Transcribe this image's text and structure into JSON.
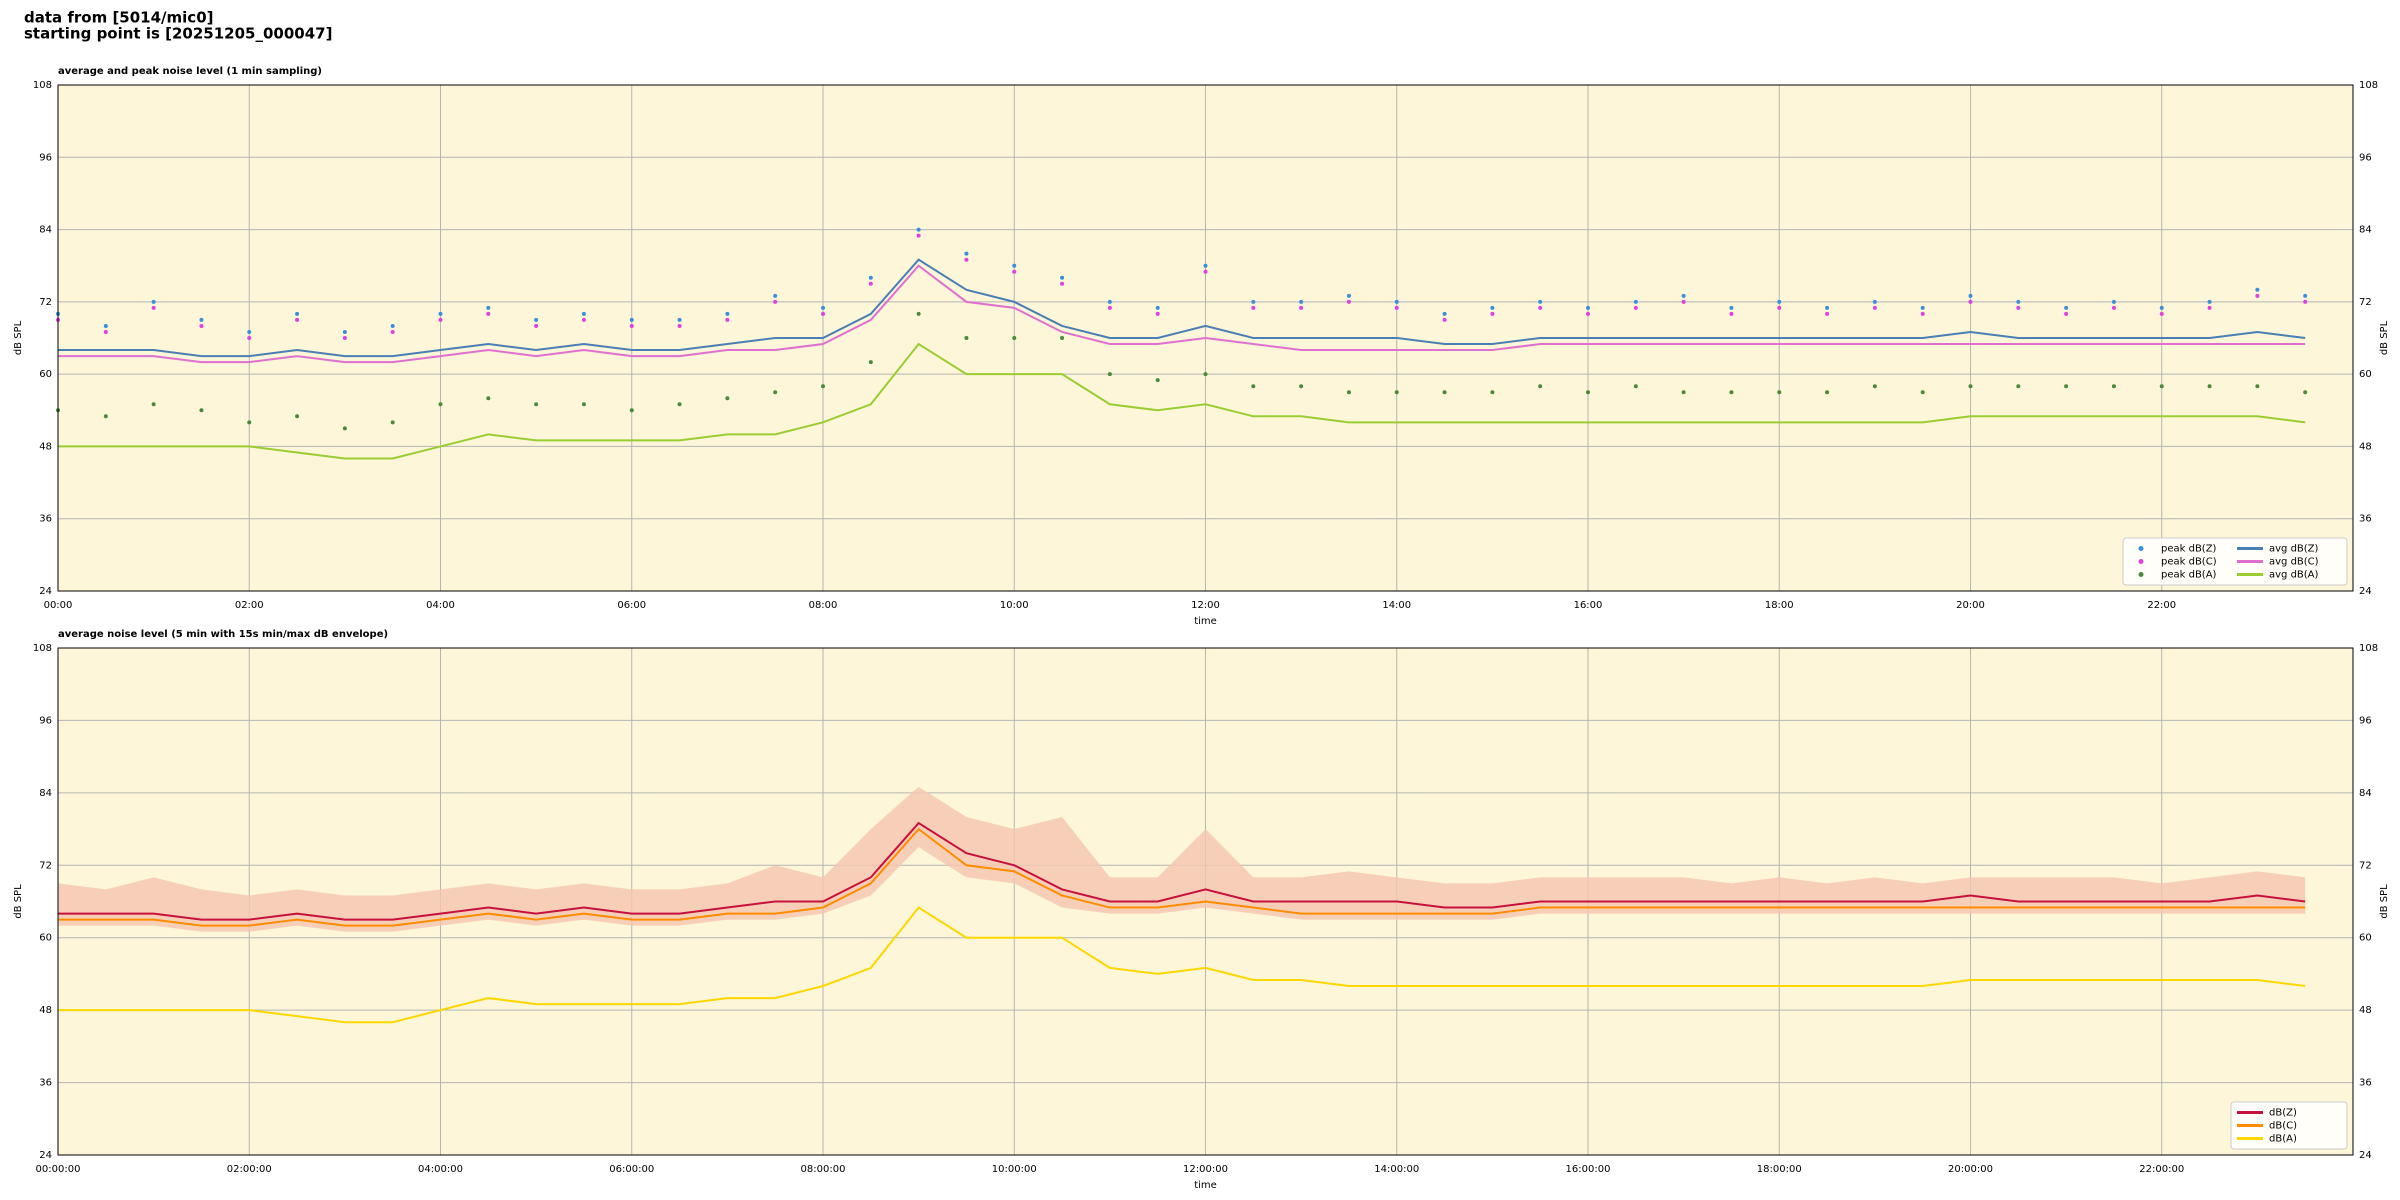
{
  "header": [
    "data from [5014/mic0]",
    "starting point is [20251205_000047]"
  ],
  "chart_data": [
    {
      "type": "line",
      "title": "average and peak noise level (1 min sampling)",
      "xlabel": "time",
      "ylabel": "dB SPL",
      "grid": true,
      "legend": "lower right",
      "background": "#fdf6d8",
      "xlim": [
        0,
        24
      ],
      "ylim": [
        24,
        108
      ],
      "xticks": [
        {
          "value": 0,
          "label": "00:00"
        },
        {
          "value": 2,
          "label": "02:00"
        },
        {
          "value": 4,
          "label": "04:00"
        },
        {
          "value": 6,
          "label": "06:00"
        },
        {
          "value": 8,
          "label": "08:00"
        },
        {
          "value": 10,
          "label": "10:00"
        },
        {
          "value": 12,
          "label": "12:00"
        },
        {
          "value": 14,
          "label": "14:00"
        },
        {
          "value": 16,
          "label": "16:00"
        },
        {
          "value": 18,
          "label": "18:00"
        },
        {
          "value": 20,
          "label": "20:00"
        },
        {
          "value": 22,
          "label": "22:00"
        }
      ],
      "yticks": [
        24,
        36,
        48,
        60,
        72,
        84,
        96,
        108
      ],
      "x": [
        0,
        0.5,
        1,
        1.5,
        2,
        2.5,
        3,
        3.5,
        4,
        4.5,
        5,
        5.5,
        6,
        6.5,
        7,
        7.5,
        8,
        8.5,
        9,
        9.5,
        10,
        10.5,
        11,
        11.5,
        12,
        12.5,
        13,
        13.5,
        14,
        14.5,
        15,
        15.5,
        16,
        16.5,
        17,
        17.5,
        18,
        18.5,
        19,
        19.5,
        20,
        20.5,
        21,
        21.5,
        22,
        22.5,
        23,
        23.5
      ],
      "series": [
        {
          "name": "peak dB(Z)",
          "style": "points",
          "color": "#3c8fdc",
          "values": [
            70,
            68,
            72,
            69,
            67,
            70,
            67,
            68,
            70,
            71,
            69,
            70,
            69,
            69,
            70,
            73,
            71,
            76,
            84,
            80,
            78,
            76,
            72,
            71,
            78,
            72,
            72,
            73,
            72,
            70,
            71,
            72,
            71,
            72,
            73,
            71,
            72,
            71,
            72,
            71,
            73,
            72,
            71,
            72,
            71,
            72,
            74,
            73
          ]
        },
        {
          "name": "peak dB(C)",
          "style": "points",
          "color": "#e040e0",
          "values": [
            69,
            67,
            71,
            68,
            66,
            69,
            66,
            67,
            69,
            70,
            68,
            69,
            68,
            68,
            69,
            72,
            70,
            75,
            83,
            79,
            77,
            75,
            71,
            70,
            77,
            71,
            71,
            72,
            71,
            69,
            70,
            71,
            70,
            71,
            72,
            70,
            71,
            70,
            71,
            70,
            72,
            71,
            70,
            71,
            70,
            71,
            73,
            72
          ]
        },
        {
          "name": "peak dB(A)",
          "style": "points",
          "color": "#4a8a3a",
          "values": [
            54,
            53,
            55,
            54,
            52,
            53,
            51,
            52,
            55,
            56,
            55,
            55,
            54,
            55,
            56,
            57,
            58,
            62,
            70,
            66,
            66,
            66,
            60,
            59,
            60,
            58,
            58,
            57,
            57,
            57,
            57,
            58,
            57,
            58,
            57,
            57,
            57,
            57,
            58,
            57,
            58,
            58,
            58,
            58,
            58,
            58,
            58,
            57
          ]
        },
        {
          "name": "avg dB(Z)",
          "style": "line",
          "color": "#4a7fb5",
          "values": [
            64,
            64,
            64,
            63,
            63,
            64,
            63,
            63,
            64,
            65,
            64,
            65,
            64,
            64,
            65,
            66,
            66,
            70,
            79,
            74,
            72,
            68,
            66,
            66,
            68,
            66,
            66,
            66,
            66,
            65,
            65,
            66,
            66,
            66,
            66,
            66,
            66,
            66,
            66,
            66,
            67,
            66,
            66,
            66,
            66,
            66,
            67,
            66
          ]
        },
        {
          "name": "avg dB(C)",
          "style": "line",
          "color": "#e070d0",
          "values": [
            63,
            63,
            63,
            62,
            62,
            63,
            62,
            62,
            63,
            64,
            63,
            64,
            63,
            63,
            64,
            64,
            65,
            69,
            78,
            72,
            71,
            67,
            65,
            65,
            66,
            65,
            64,
            64,
            64,
            64,
            64,
            65,
            65,
            65,
            65,
            65,
            65,
            65,
            65,
            65,
            65,
            65,
            65,
            65,
            65,
            65,
            65,
            65
          ]
        },
        {
          "name": "avg dB(A)",
          "style": "line",
          "color": "#9acd32",
          "values": [
            48,
            48,
            48,
            48,
            48,
            47,
            46,
            46,
            48,
            50,
            49,
            49,
            49,
            49,
            50,
            50,
            52,
            55,
            65,
            60,
            60,
            60,
            55,
            54,
            55,
            53,
            53,
            52,
            52,
            52,
            52,
            52,
            52,
            52,
            52,
            52,
            52,
            52,
            52,
            52,
            53,
            53,
            53,
            53,
            53,
            53,
            53,
            52
          ]
        }
      ]
    },
    {
      "type": "line",
      "title": "average noise level (5 min with 15s min/max dB envelope)",
      "xlabel": "time",
      "ylabel": "dB SPL",
      "grid": true,
      "legend": "lower right",
      "background": "#fdf6d8",
      "xlim": [
        0,
        24
      ],
      "ylim": [
        24,
        108
      ],
      "xticks": [
        {
          "value": 0,
          "label": "00:00:00"
        },
        {
          "value": 2,
          "label": "02:00:00"
        },
        {
          "value": 4,
          "label": "04:00:00"
        },
        {
          "value": 6,
          "label": "06:00:00"
        },
        {
          "value": 8,
          "label": "08:00:00"
        },
        {
          "value": 10,
          "label": "10:00:00"
        },
        {
          "value": 12,
          "label": "12:00:00"
        },
        {
          "value": 14,
          "label": "14:00:00"
        },
        {
          "value": 16,
          "label": "16:00:00"
        },
        {
          "value": 18,
          "label": "18:00:00"
        },
        {
          "value": 20,
          "label": "20:00:00"
        },
        {
          "value": 22,
          "label": "22:00:00"
        }
      ],
      "yticks": [
        24,
        36,
        48,
        60,
        72,
        84,
        96,
        108
      ],
      "x": [
        0,
        0.5,
        1,
        1.5,
        2,
        2.5,
        3,
        3.5,
        4,
        4.5,
        5,
        5.5,
        6,
        6.5,
        7,
        7.5,
        8,
        8.5,
        9,
        9.5,
        10,
        10.5,
        11,
        11.5,
        12,
        12.5,
        13,
        13.5,
        14,
        14.5,
        15,
        15.5,
        16,
        16.5,
        17,
        17.5,
        18,
        18.5,
        19,
        19.5,
        20,
        20.5,
        21,
        21.5,
        22,
        22.5,
        23,
        23.5
      ],
      "envelope": {
        "color": "#f5c6b0",
        "upper": [
          69,
          68,
          70,
          68,
          67,
          68,
          67,
          67,
          68,
          69,
          68,
          69,
          68,
          68,
          69,
          72,
          70,
          78,
          85,
          80,
          78,
          80,
          70,
          70,
          78,
          70,
          70,
          71,
          70,
          69,
          69,
          70,
          70,
          70,
          70,
          69,
          70,
          69,
          70,
          69,
          70,
          70,
          70,
          70,
          69,
          70,
          71,
          70
        ],
        "lower": [
          62,
          62,
          62,
          61,
          61,
          62,
          61,
          61,
          62,
          63,
          62,
          63,
          62,
          62,
          63,
          63,
          64,
          67,
          75,
          70,
          69,
          65,
          64,
          64,
          65,
          64,
          63,
          63,
          63,
          63,
          63,
          64,
          64,
          64,
          64,
          64,
          64,
          64,
          64,
          64,
          64,
          64,
          64,
          64,
          64,
          64,
          64,
          64
        ]
      },
      "series": [
        {
          "name": "dB(Z)",
          "style": "line",
          "color": "#c8103c",
          "values": [
            64,
            64,
            64,
            63,
            63,
            64,
            63,
            63,
            64,
            65,
            64,
            65,
            64,
            64,
            65,
            66,
            66,
            70,
            79,
            74,
            72,
            68,
            66,
            66,
            68,
            66,
            66,
            66,
            66,
            65,
            65,
            66,
            66,
            66,
            66,
            66,
            66,
            66,
            66,
            66,
            67,
            66,
            66,
            66,
            66,
            66,
            67,
            66
          ]
        },
        {
          "name": "dB(C)",
          "style": "line",
          "color": "#ff8c00",
          "values": [
            63,
            63,
            63,
            62,
            62,
            63,
            62,
            62,
            63,
            64,
            63,
            64,
            63,
            63,
            64,
            64,
            65,
            69,
            78,
            72,
            71,
            67,
            65,
            65,
            66,
            65,
            64,
            64,
            64,
            64,
            64,
            65,
            65,
            65,
            65,
            65,
            65,
            65,
            65,
            65,
            65,
            65,
            65,
            65,
            65,
            65,
            65,
            65
          ]
        },
        {
          "name": "dB(A)",
          "style": "line",
          "color": "#ffd700",
          "values": [
            48,
            48,
            48,
            48,
            48,
            47,
            46,
            46,
            48,
            50,
            49,
            49,
            49,
            49,
            50,
            50,
            52,
            55,
            65,
            60,
            60,
            60,
            55,
            54,
            55,
            53,
            53,
            52,
            52,
            52,
            52,
            52,
            52,
            52,
            52,
            52,
            52,
            52,
            52,
            52,
            53,
            53,
            53,
            53,
            53,
            53,
            53,
            52
          ]
        }
      ]
    }
  ]
}
